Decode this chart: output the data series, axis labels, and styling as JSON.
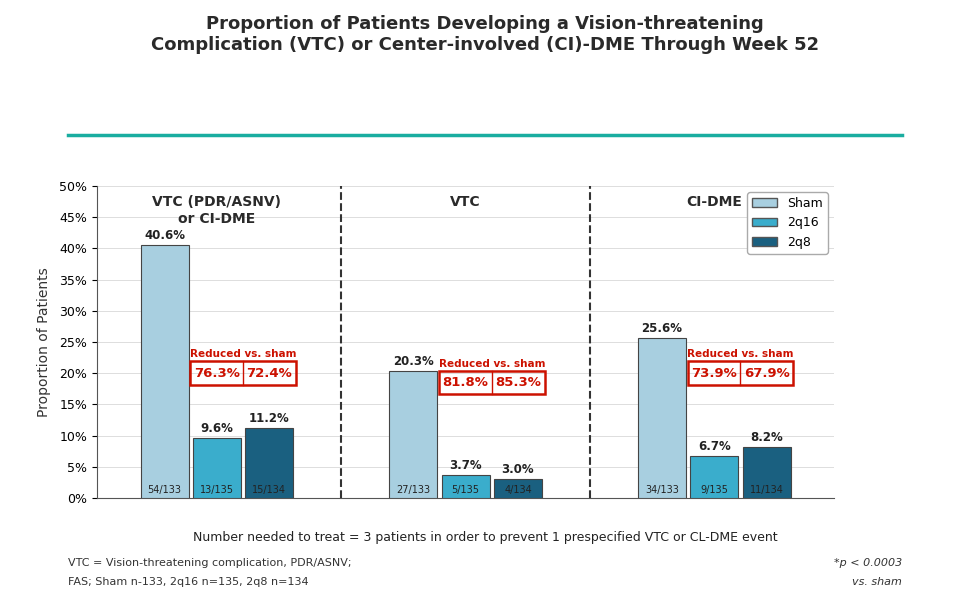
{
  "title_line1": "Proportion of Patients Developing a Vision-threatening",
  "title_line2": "Complication (VTC) or Center-involved (CI)-DME Through Week 52",
  "ylabel": "Proportion of Patients",
  "values": [
    [
      40.6,
      9.6,
      11.2
    ],
    [
      20.3,
      3.7,
      3.0
    ],
    [
      25.6,
      6.7,
      8.2
    ]
  ],
  "fractions": [
    [
      "54/133",
      "13/135",
      "15/134"
    ],
    [
      "27/133",
      "5/135",
      "4/134"
    ],
    [
      "34/133",
      "9/135",
      "11/134"
    ]
  ],
  "reductions": [
    [
      "76.3%",
      "72.4%"
    ],
    [
      "81.8%",
      "85.3%"
    ],
    [
      "73.9%",
      "67.9%"
    ]
  ],
  "reduction_label": "Reduced vs. sham",
  "bar_colors": [
    "#a8cfe0",
    "#3aadcc",
    "#1a6080"
  ],
  "ylim": [
    0,
    50
  ],
  "yticks": [
    0,
    5,
    10,
    15,
    20,
    25,
    30,
    35,
    40,
    45,
    50
  ],
  "ytick_labels": [
    "0%",
    "5%",
    "10%",
    "15%",
    "20%",
    "25%",
    "30%",
    "35%",
    "40%",
    "45%",
    "50%"
  ],
  "group_label_texts": [
    "VTC (PDR/ASNV)\nor CI-DME",
    "VTC",
    "CI-DME"
  ],
  "footer_left1": "VTC = Vision-threatening complication, PDR/ASNV;",
  "footer_left2": "FAS; Sham n-133, 2q16 n=135, 2q8 n=134",
  "footer_right1": "*p < 0.0003",
  "footer_right2": "vs. sham",
  "footer_center": "Number needed to treat = 3 patients in order to prevent 1 prespecified VTC or CL-DME event",
  "title_color": "#2a2a2a",
  "reduction_text_color": "#cc1100",
  "reduction_box_color": "#cc1100",
  "teal_line_color": "#1aada0",
  "legend_labels": [
    "Sham",
    "2q16",
    "2q8"
  ]
}
